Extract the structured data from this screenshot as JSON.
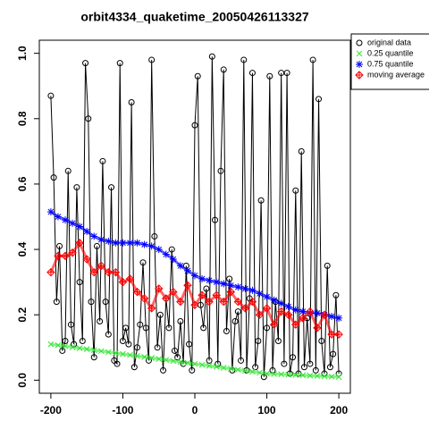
{
  "chart_data": {
    "type": "line",
    "title": "orbit4334_quaketime_20050426113327",
    "xlim": [
      -216,
      216
    ],
    "ylim": [
      -0.04,
      1.04
    ],
    "xticks": [
      -200,
      -100,
      0,
      100,
      200
    ],
    "yticks": [
      {
        "value": 0,
        "label": "0.0"
      },
      {
        "value": 0.2,
        "label": "0.2"
      },
      {
        "value": 0.4,
        "label": "0.4"
      },
      {
        "value": 0.6,
        "label": "0.6"
      },
      {
        "value": 0.8,
        "label": "0.8"
      },
      {
        "value": 1,
        "label": "1.0"
      }
    ],
    "legend": "right",
    "series": [
      {
        "name": "original data",
        "color": "#000000",
        "marker": "circle",
        "line": true,
        "x": [
          -200,
          -196,
          -192,
          -188,
          -184,
          -180,
          -176,
          -172,
          -168,
          -164,
          -160,
          -156,
          -152,
          -148,
          -144,
          -140,
          -136,
          -132,
          -128,
          -124,
          -120,
          -116,
          -112,
          -108,
          -104,
          -100,
          -96,
          -92,
          -88,
          -84,
          -80,
          -76,
          -72,
          -68,
          -64,
          -60,
          -56,
          -52,
          -48,
          -44,
          -40,
          -36,
          -32,
          -28,
          -24,
          -20,
          -16,
          -12,
          -8,
          -4,
          0,
          4,
          8,
          12,
          16,
          20,
          24,
          28,
          32,
          36,
          40,
          44,
          48,
          52,
          56,
          60,
          64,
          68,
          72,
          76,
          80,
          84,
          88,
          92,
          96,
          100,
          104,
          108,
          112,
          116,
          120,
          124,
          128,
          132,
          136,
          140,
          144,
          148,
          152,
          156,
          160,
          164,
          168,
          172,
          176,
          180,
          184,
          188,
          192,
          196,
          200
        ],
        "values": [
          0.87,
          0.62,
          0.24,
          0.41,
          0.09,
          0.12,
          0.64,
          0.17,
          0.11,
          0.59,
          0.3,
          0.12,
          0.97,
          0.8,
          0.24,
          0.07,
          0.41,
          0.18,
          0.67,
          0.24,
          0.14,
          0.59,
          0.06,
          0.05,
          0.97,
          0.12,
          0.16,
          0.11,
          0.85,
          0.04,
          0.1,
          0.17,
          0.36,
          0.16,
          0.06,
          0.98,
          0.44,
          0.1,
          0.2,
          0.03,
          0.25,
          0.16,
          0.4,
          0.09,
          0.07,
          0.18,
          0.05,
          0.35,
          0.11,
          0.03,
          0.78,
          0.93,
          0.23,
          0.16,
          0.28,
          0.06,
          0.99,
          0.49,
          0.05,
          0.64,
          0.95,
          0.15,
          0.31,
          0.03,
          0.18,
          0.21,
          0.06,
          0.98,
          0.03,
          0.25,
          0.94,
          0.04,
          0.12,
          0.55,
          0.01,
          0.16,
          0.93,
          0.03,
          0.24,
          0.12,
          0.94,
          0.05,
          0.94,
          0.02,
          0.07,
          0.58,
          0.02,
          0.7,
          0.04,
          0.19,
          0.05,
          0.98,
          0.03,
          0.86,
          0.12,
          0.02,
          0.35,
          0.04,
          0.08,
          0.26,
          0.02
        ]
      },
      {
        "name": "0.25 quantile",
        "color": "#33e633",
        "marker": "x",
        "line": false,
        "x": [
          -200,
          -190,
          -180,
          -170,
          -160,
          -150,
          -140,
          -130,
          -120,
          -110,
          -100,
          -90,
          -80,
          -70,
          -60,
          -50,
          -40,
          -30,
          -20,
          -10,
          0,
          10,
          20,
          30,
          40,
          50,
          60,
          70,
          80,
          90,
          100,
          110,
          120,
          130,
          140,
          150,
          160,
          170,
          180,
          190,
          200
        ],
        "values": [
          0.11,
          0.107,
          0.104,
          0.101,
          0.098,
          0.095,
          0.092,
          0.089,
          0.086,
          0.083,
          0.08,
          0.077,
          0.074,
          0.071,
          0.068,
          0.065,
          0.062,
          0.059,
          0.056,
          0.053,
          0.05,
          0.047,
          0.044,
          0.041,
          0.038,
          0.035,
          0.032,
          0.029,
          0.026,
          0.023,
          0.02,
          0.019,
          0.018,
          0.017,
          0.016,
          0.015,
          0.014,
          0.013,
          0.012,
          0.011,
          0.01
        ]
      },
      {
        "name": "0.75 quantile",
        "color": "#0000ff",
        "marker": "asterisk",
        "line": false,
        "x": [
          -200,
          -190,
          -180,
          -170,
          -160,
          -150,
          -140,
          -130,
          -120,
          -110,
          -100,
          -90,
          -80,
          -70,
          -60,
          -50,
          -40,
          -30,
          -20,
          -10,
          0,
          10,
          20,
          30,
          40,
          50,
          60,
          70,
          80,
          90,
          100,
          110,
          120,
          130,
          140,
          150,
          160,
          170,
          180,
          190,
          200
        ],
        "values": [
          0.515,
          0.5,
          0.49,
          0.48,
          0.47,
          0.455,
          0.44,
          0.43,
          0.425,
          0.42,
          0.42,
          0.42,
          0.42,
          0.415,
          0.41,
          0.4,
          0.385,
          0.37,
          0.35,
          0.335,
          0.32,
          0.31,
          0.305,
          0.3,
          0.295,
          0.29,
          0.285,
          0.28,
          0.275,
          0.265,
          0.255,
          0.245,
          0.235,
          0.225,
          0.215,
          0.21,
          0.205,
          0.205,
          0.2,
          0.195,
          0.19
        ]
      },
      {
        "name": "moving average",
        "color": "#ff0000",
        "marker": "diamond",
        "line": false,
        "x": [
          -200,
          -190,
          -180,
          -170,
          -160,
          -150,
          -140,
          -130,
          -120,
          -110,
          -100,
          -90,
          -80,
          -70,
          -60,
          -50,
          -40,
          -30,
          -20,
          -10,
          0,
          10,
          20,
          30,
          40,
          50,
          60,
          70,
          80,
          90,
          100,
          110,
          120,
          130,
          140,
          150,
          160,
          170,
          180,
          190,
          200
        ],
        "values": [
          0.33,
          0.38,
          0.38,
          0.39,
          0.42,
          0.37,
          0.33,
          0.35,
          0.33,
          0.33,
          0.3,
          0.31,
          0.27,
          0.25,
          0.22,
          0.28,
          0.25,
          0.27,
          0.24,
          0.29,
          0.23,
          0.26,
          0.24,
          0.26,
          0.24,
          0.27,
          0.24,
          0.22,
          0.24,
          0.2,
          0.22,
          0.17,
          0.21,
          0.2,
          0.17,
          0.19,
          0.21,
          0.16,
          0.2,
          0.14,
          0.14
        ]
      }
    ]
  }
}
